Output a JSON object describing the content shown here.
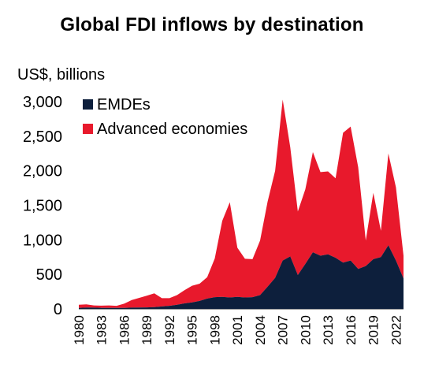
{
  "chart_data": {
    "type": "area",
    "stacked": true,
    "title": "Global FDI inflows by destination",
    "ylabel": "US$, billions",
    "xlabel": "",
    "ylim": [
      0,
      3000
    ],
    "xlim": [
      1980,
      2023
    ],
    "y_ticks": [
      0,
      500,
      1000,
      1500,
      2000,
      2500,
      3000
    ],
    "y_tick_labels": [
      "0",
      "500",
      "1,000",
      "1,500",
      "2,000",
      "2,500",
      "3,000"
    ],
    "x_ticks": [
      1980,
      1983,
      1986,
      1989,
      1992,
      1995,
      1998,
      2001,
      2004,
      2007,
      2010,
      2013,
      2016,
      2019,
      2022
    ],
    "x_tick_labels": [
      "1980",
      "1983",
      "1986",
      "1989",
      "1992",
      "1995",
      "1998",
      "2001",
      "2004",
      "2007",
      "2010",
      "2013",
      "2016",
      "2019",
      "2022"
    ],
    "grid": false,
    "legend_position": "top-left",
    "x": [
      1980,
      1981,
      1982,
      1983,
      1984,
      1985,
      1986,
      1987,
      1988,
      1989,
      1990,
      1991,
      1992,
      1993,
      1994,
      1995,
      1996,
      1997,
      1998,
      1999,
      2000,
      2001,
      2002,
      2003,
      2004,
      2005,
      2006,
      2007,
      2008,
      2009,
      2010,
      2011,
      2012,
      2013,
      2014,
      2015,
      2016,
      2017,
      2018,
      2019,
      2020,
      2021,
      2022,
      2023
    ],
    "series": [
      {
        "name": "EMDEs",
        "color": "#0d1f3c",
        "values": [
          15,
          20,
          18,
          15,
          15,
          14,
          15,
          18,
          20,
          22,
          25,
          35,
          45,
          60,
          80,
          95,
          115,
          150,
          170,
          175,
          165,
          175,
          165,
          170,
          200,
          320,
          450,
          700,
          760,
          490,
          650,
          820,
          770,
          790,
          740,
          670,
          700,
          580,
          620,
          720,
          750,
          920,
          700,
          440
        ]
      },
      {
        "name": "Advanced economies",
        "color": "#e8192c",
        "values": [
          45,
          45,
          32,
          32,
          35,
          30,
          60,
          110,
          140,
          170,
          200,
          120,
          110,
          140,
          190,
          240,
          250,
          310,
          560,
          1100,
          1380,
          710,
          560,
          550,
          790,
          1230,
          1550,
          2330,
          1580,
          920,
          1080,
          1450,
          1210,
          1200,
          1150,
          1880,
          1940,
          1470,
          370,
          960,
          380,
          1330,
          1060,
          330
        ]
      }
    ]
  }
}
